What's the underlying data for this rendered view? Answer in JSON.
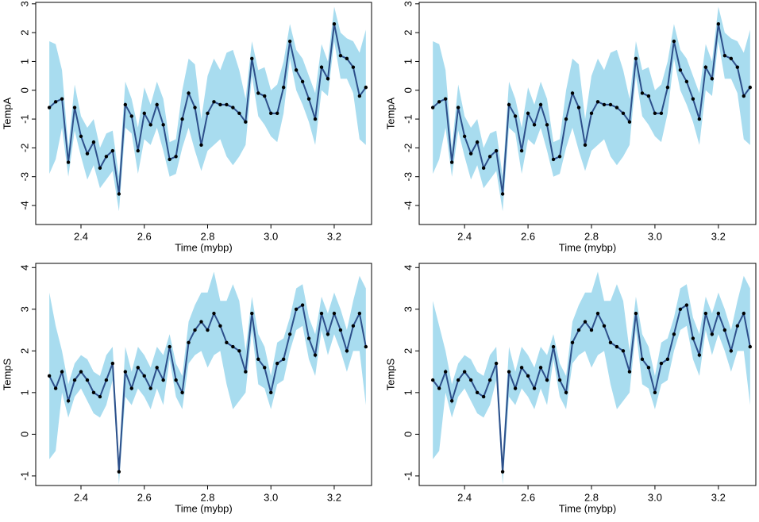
{
  "chart_data": [
    {
      "type": "line",
      "xlabel": "Time (mybp)",
      "ylabel": "TempA",
      "x": [
        2.3,
        2.32,
        2.34,
        2.36,
        2.38,
        2.4,
        2.42,
        2.44,
        2.46,
        2.48,
        2.5,
        2.52,
        2.54,
        2.56,
        2.58,
        2.6,
        2.62,
        2.64,
        2.66,
        2.68,
        2.7,
        2.72,
        2.74,
        2.76,
        2.78,
        2.8,
        2.82,
        2.84,
        2.86,
        2.88,
        2.9,
        2.92,
        2.94,
        2.96,
        2.98,
        3.0,
        3.02,
        3.04,
        3.06,
        3.08,
        3.1,
        3.12,
        3.14,
        3.16,
        3.18,
        3.2,
        3.22,
        3.24,
        3.26,
        3.28,
        3.3
      ],
      "values": [
        -0.6,
        -0.4,
        -0.3,
        -2.5,
        -0.6,
        -1.6,
        -2.2,
        -1.8,
        -2.7,
        -2.3,
        -2.1,
        -3.6,
        -0.5,
        -0.9,
        -2.1,
        -0.8,
        -1.2,
        -0.5,
        -1.2,
        -2.4,
        -2.3,
        -1.0,
        -0.1,
        -0.6,
        -1.9,
        -0.8,
        -0.4,
        -0.5,
        -0.5,
        -0.6,
        -0.8,
        -1.1,
        1.1,
        -0.1,
        -0.2,
        -0.8,
        -0.8,
        0.1,
        1.7,
        0.7,
        0.3,
        -0.3,
        -1.0,
        0.8,
        0.4,
        2.3,
        1.2,
        1.1,
        0.8,
        -0.2,
        0.1
      ],
      "upper": [
        1.7,
        1.6,
        0.7,
        -2.0,
        0.2,
        -0.9,
        -1.3,
        -1.0,
        -2.0,
        -1.5,
        -1.4,
        -3.0,
        0.3,
        -0.3,
        -1.3,
        0.1,
        -0.5,
        0.3,
        -0.3,
        -1.8,
        -1.7,
        0,
        1.1,
        0.9,
        -1.0,
        0.5,
        1.1,
        0.7,
        1.3,
        1.4,
        0.7,
        -0.3,
        1.7,
        0.7,
        0.8,
        0,
        0.2,
        1.0,
        2.3,
        1.4,
        1.1,
        0.5,
        -0.1,
        1.6,
        1.0,
        2.9,
        2.0,
        1.8,
        1.7,
        1.3,
        2.1
      ],
      "lower": [
        -2.9,
        -2.4,
        -1.3,
        -3.0,
        -1.4,
        -2.3,
        -3.1,
        -2.6,
        -3.4,
        -3.1,
        -2.8,
        -4.2,
        -1.3,
        -1.5,
        -2.9,
        -1.7,
        -1.9,
        -1.3,
        -2.1,
        -3.0,
        -2.9,
        -2.0,
        -1.3,
        -2.1,
        -2.8,
        -2.1,
        -1.9,
        -1.7,
        -2.3,
        -2.6,
        -2.3,
        -1.9,
        0.5,
        -0.9,
        -1.2,
        -1.6,
        -1.8,
        -0.8,
        1.1,
        0,
        -0.5,
        -1.1,
        -1.9,
        0,
        -0.2,
        1.7,
        0.4,
        0.4,
        -0.1,
        -1.7,
        -1.9
      ],
      "xlim": [
        2.257,
        3.318
      ],
      "ylim": [
        -4.66,
        3.05
      ],
      "xticks": [
        2.4,
        2.6,
        2.8,
        {
          "value": 3,
          "label": "3.0"
        },
        3.2
      ],
      "yticks": [
        -4,
        -3,
        -2,
        -1,
        0,
        1,
        2,
        3
      ],
      "color": "#2d4f8a",
      "band_color": "#a8dcef",
      "point_color": "#000000"
    },
    {
      "type": "line",
      "xlabel": "Time (mybp)",
      "ylabel": "TempA",
      "x": [
        2.3,
        2.32,
        2.34,
        2.36,
        2.38,
        2.4,
        2.42,
        2.44,
        2.46,
        2.48,
        2.5,
        2.52,
        2.54,
        2.56,
        2.58,
        2.6,
        2.62,
        2.64,
        2.66,
        2.68,
        2.7,
        2.72,
        2.74,
        2.76,
        2.78,
        2.8,
        2.82,
        2.84,
        2.86,
        2.88,
        2.9,
        2.92,
        2.94,
        2.96,
        2.98,
        3.0,
        3.02,
        3.04,
        3.06,
        3.08,
        3.1,
        3.12,
        3.14,
        3.16,
        3.18,
        3.2,
        3.22,
        3.24,
        3.26,
        3.28,
        3.3
      ],
      "values": [
        -0.6,
        -0.4,
        -0.3,
        -2.5,
        -0.6,
        -1.6,
        -2.2,
        -1.8,
        -2.7,
        -2.3,
        -2.1,
        -3.6,
        -0.5,
        -0.9,
        -2.1,
        -0.8,
        -1.2,
        -0.5,
        -1.2,
        -2.4,
        -2.3,
        -1.0,
        -0.1,
        -0.6,
        -1.9,
        -0.8,
        -0.4,
        -0.5,
        -0.5,
        -0.6,
        -0.8,
        -1.1,
        1.1,
        -0.1,
        -0.2,
        -0.8,
        -0.8,
        0.1,
        1.7,
        0.7,
        0.3,
        -0.3,
        -1.0,
        0.8,
        0.4,
        2.3,
        1.2,
        1.1,
        0.8,
        -0.2,
        0.1
      ],
      "upper": [
        1.7,
        1.6,
        0.7,
        -2.0,
        0.2,
        -0.9,
        -1.3,
        -1.0,
        -2.0,
        -1.5,
        -1.4,
        -3.0,
        0.3,
        -0.3,
        -1.3,
        0.1,
        -0.5,
        0.3,
        -0.3,
        -1.8,
        -1.7,
        0,
        1.1,
        0.9,
        -1.0,
        0.5,
        1.1,
        0.7,
        1.3,
        1.4,
        0.7,
        -0.3,
        1.7,
        0.7,
        0.8,
        0,
        0.2,
        1.0,
        2.3,
        1.4,
        1.1,
        0.5,
        -0.1,
        1.6,
        1.0,
        2.9,
        2.0,
        1.8,
        1.7,
        1.3,
        2.1
      ],
      "lower": [
        -2.9,
        -2.4,
        -1.3,
        -3.0,
        -1.4,
        -2.3,
        -3.1,
        -2.6,
        -3.4,
        -3.1,
        -2.8,
        -4.2,
        -1.3,
        -1.5,
        -2.9,
        -1.7,
        -1.9,
        -1.3,
        -2.1,
        -3.0,
        -2.9,
        -2.0,
        -1.3,
        -2.1,
        -2.8,
        -2.1,
        -1.9,
        -1.7,
        -2.3,
        -2.6,
        -2.3,
        -1.9,
        0.5,
        -0.9,
        -1.2,
        -1.6,
        -1.8,
        -0.8,
        1.1,
        0,
        -0.5,
        -1.1,
        -1.9,
        0,
        -0.2,
        1.7,
        0.4,
        0.4,
        -0.1,
        -1.7,
        -1.9
      ],
      "xlim": [
        2.257,
        3.318
      ],
      "ylim": [
        -4.66,
        3.05
      ],
      "xticks": [
        2.4,
        2.6,
        2.8,
        {
          "value": 3,
          "label": "3.0"
        },
        3.2
      ],
      "yticks": [
        -4,
        -3,
        -2,
        -1,
        0,
        1,
        2,
        3
      ],
      "color": "#2d4f8a",
      "band_color": "#a8dcef",
      "point_color": "#000000"
    },
    {
      "type": "line",
      "xlabel": "Time (mybp)",
      "ylabel": "TempS",
      "x": [
        2.3,
        2.32,
        2.34,
        2.36,
        2.38,
        2.4,
        2.42,
        2.44,
        2.46,
        2.48,
        2.5,
        2.52,
        2.54,
        2.56,
        2.58,
        2.6,
        2.62,
        2.64,
        2.66,
        2.68,
        2.7,
        2.72,
        2.74,
        2.76,
        2.78,
        2.8,
        2.82,
        2.84,
        2.86,
        2.88,
        2.9,
        2.92,
        2.94,
        2.96,
        2.98,
        3.0,
        3.02,
        3.04,
        3.06,
        3.08,
        3.1,
        3.12,
        3.14,
        3.16,
        3.18,
        3.2,
        3.22,
        3.24,
        3.26,
        3.28,
        3.3
      ],
      "values": [
        1.4,
        1.1,
        1.5,
        0.8,
        1.3,
        1.5,
        1.3,
        1.0,
        0.9,
        1.3,
        1.7,
        -0.9,
        1.5,
        1.1,
        1.6,
        1.4,
        1.1,
        1.6,
        1.3,
        2.1,
        1.3,
        1.0,
        2.2,
        2.5,
        2.7,
        2.5,
        2.9,
        2.6,
        2.2,
        2.1,
        2.0,
        1.5,
        2.9,
        1.8,
        1.6,
        1.0,
        1.7,
        1.8,
        2.4,
        3.0,
        3.1,
        2.3,
        1.9,
        2.9,
        2.4,
        2.9,
        2.5,
        2.0,
        2.6,
        2.9,
        2.1
      ],
      "upper": [
        3.4,
        2.6,
        2.0,
        1.2,
        1.7,
        1.9,
        1.8,
        1.5,
        1.4,
        1.9,
        2.1,
        -0.6,
        2.1,
        1.5,
        2.1,
        1.9,
        1.6,
        2.1,
        1.9,
        2.4,
        1.7,
        1.4,
        2.7,
        3.1,
        3.4,
        3.4,
        3.9,
        3.2,
        3.2,
        3.6,
        3.2,
        2.0,
        3.3,
        2.4,
        2.1,
        1.4,
        2.2,
        2.3,
        2.8,
        3.5,
        3.6,
        2.8,
        2.4,
        3.3,
        2.9,
        3.4,
        3.0,
        2.5,
        3.2,
        3.8,
        3.5
      ],
      "lower": [
        -0.6,
        -0.4,
        1.0,
        0.4,
        0.9,
        1.1,
        0.8,
        0.5,
        0.4,
        0.7,
        1.3,
        -1.2,
        0.9,
        0.7,
        1.1,
        0.9,
        0.6,
        1.1,
        0.7,
        1.8,
        0.9,
        0.6,
        1.7,
        1.9,
        2.0,
        1.6,
        1.9,
        2.0,
        1.2,
        0.6,
        0.8,
        1.0,
        2.5,
        1.2,
        1.1,
        0.6,
        1.2,
        1.3,
        2.0,
        2.5,
        2.6,
        1.8,
        1.4,
        2.5,
        1.9,
        2.4,
        2.0,
        1.5,
        2.0,
        2.0,
        0.7
      ],
      "xlim": [
        2.257,
        3.318
      ],
      "ylim": [
        -1.23,
        4.1
      ],
      "xticks": [
        2.4,
        2.6,
        2.8,
        {
          "value": 3,
          "label": "3.0"
        },
        3.2
      ],
      "yticks": [
        -1,
        0,
        1,
        2,
        3,
        4
      ],
      "color": "#2d4f8a",
      "band_color": "#a8dcef",
      "point_color": "#000000"
    },
    {
      "type": "line",
      "xlabel": "Time (mybp)",
      "ylabel": "TempS",
      "x": [
        2.3,
        2.32,
        2.34,
        2.36,
        2.38,
        2.4,
        2.42,
        2.44,
        2.46,
        2.48,
        2.5,
        2.52,
        2.54,
        2.56,
        2.58,
        2.6,
        2.62,
        2.64,
        2.66,
        2.68,
        2.7,
        2.72,
        2.74,
        2.76,
        2.78,
        2.8,
        2.82,
        2.84,
        2.86,
        2.88,
        2.9,
        2.92,
        2.94,
        2.96,
        2.98,
        3.0,
        3.02,
        3.04,
        3.06,
        3.08,
        3.1,
        3.12,
        3.14,
        3.16,
        3.18,
        3.2,
        3.22,
        3.24,
        3.26,
        3.28,
        3.3
      ],
      "values": [
        1.3,
        1.1,
        1.5,
        0.8,
        1.3,
        1.5,
        1.3,
        1.0,
        0.9,
        1.3,
        1.7,
        -0.9,
        1.5,
        1.1,
        1.6,
        1.4,
        1.1,
        1.6,
        1.3,
        2.1,
        1.3,
        1.0,
        2.2,
        2.5,
        2.7,
        2.5,
        2.9,
        2.6,
        2.2,
        2.1,
        2.0,
        1.5,
        2.9,
        1.8,
        1.6,
        1.0,
        1.7,
        1.8,
        2.4,
        3.0,
        3.1,
        2.3,
        1.9,
        2.9,
        2.4,
        2.9,
        2.5,
        2.0,
        2.6,
        2.9,
        2.1
      ],
      "upper": [
        3.2,
        2.6,
        2.0,
        1.2,
        1.7,
        1.9,
        1.8,
        1.5,
        1.4,
        1.9,
        2.1,
        -0.6,
        2.1,
        1.5,
        2.1,
        1.9,
        1.6,
        2.1,
        1.9,
        2.4,
        1.7,
        1.4,
        2.7,
        3.1,
        3.4,
        3.4,
        3.9,
        3.2,
        3.2,
        3.6,
        3.2,
        2.0,
        3.3,
        2.4,
        2.1,
        1.4,
        2.2,
        2.3,
        2.8,
        3.5,
        3.6,
        2.8,
        2.4,
        3.3,
        2.9,
        3.4,
        3.0,
        2.5,
        3.2,
        3.8,
        3.5
      ],
      "lower": [
        -0.6,
        -0.4,
        1.0,
        0.4,
        0.9,
        1.1,
        0.8,
        0.5,
        0.4,
        0.7,
        1.3,
        -1.2,
        0.9,
        0.7,
        1.1,
        0.9,
        0.6,
        1.1,
        0.7,
        1.8,
        0.9,
        0.6,
        1.7,
        1.9,
        2.0,
        1.6,
        1.9,
        2.0,
        1.2,
        0.6,
        0.8,
        1.0,
        2.5,
        1.2,
        1.1,
        0.6,
        1.2,
        1.3,
        2.0,
        2.5,
        2.6,
        1.8,
        1.4,
        2.5,
        1.9,
        2.4,
        2.0,
        1.5,
        2.0,
        2.0,
        0.7
      ],
      "xlim": [
        2.257,
        3.318
      ],
      "ylim": [
        -1.23,
        4.1
      ],
      "xticks": [
        2.4,
        2.6,
        2.8,
        {
          "value": 3,
          "label": "3.0"
        },
        3.2
      ],
      "yticks": [
        -1,
        0,
        1,
        2,
        3,
        4
      ],
      "color": "#2d4f8a",
      "band_color": "#a8dcef",
      "point_color": "#000000"
    }
  ]
}
